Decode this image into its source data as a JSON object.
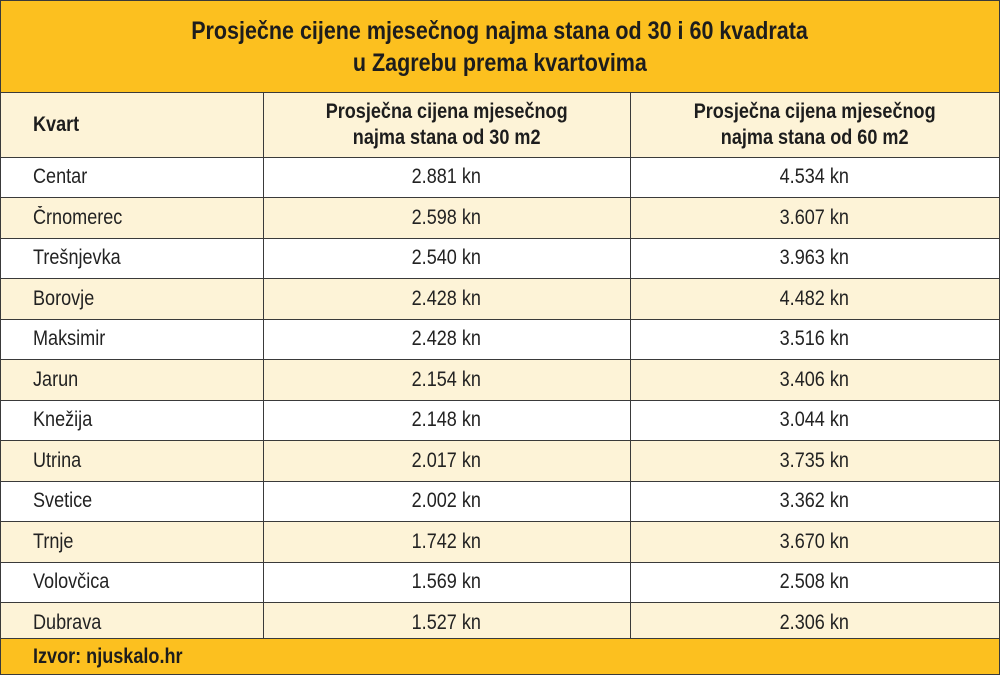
{
  "title": {
    "line1": "Prosječne cijene mjesečnog najma stana od 30 i 60 kvadrata",
    "line2": "u Zagrebu prema kvartovima"
  },
  "header": {
    "kvart": "Kvart",
    "col30_line1": "Prosječna cijena mjesečnog",
    "col30_line2": "najma stana od 30 m2",
    "col60_line1": "Prosječna cijena mjesečnog",
    "col60_line2": "najma stana od 60 m2"
  },
  "source": "Izvor: njuskalo.hr",
  "colors": {
    "accent": "#fcc01f",
    "row_alt": "#fdf3d7",
    "border": "#3a3a3a"
  },
  "chart_data": {
    "type": "table",
    "title": "Prosječne cijene mjesečnog najma stana od 30 i 60 kvadrata u Zagrebu prema kvartovima",
    "columns": [
      "Kvart",
      "Prosječna cijena mjesečnog najma stana od 30 m2",
      "Prosječna cijena mjesečnog najma stana od 60 m2"
    ],
    "rows": [
      [
        "Centar",
        "2.881 kn",
        "4.534 kn"
      ],
      [
        "Črnomerec",
        "2.598 kn",
        "3.607 kn"
      ],
      [
        "Trešnjevka",
        "2.540 kn",
        "3.963 kn"
      ],
      [
        "Borovje",
        "2.428 kn",
        "4.482 kn"
      ],
      [
        "Maksimir",
        "2.428 kn",
        "3.516 kn"
      ],
      [
        "Jarun",
        "2.154 kn",
        "3.406 kn"
      ],
      [
        "Knežija",
        "2.148 kn",
        "3.044 kn"
      ],
      [
        "Utrina",
        "2.017 kn",
        "3.735 kn"
      ],
      [
        "Svetice",
        "2.002 kn",
        "3.362 kn"
      ],
      [
        "Trnje",
        "1.742 kn",
        "3.670 kn"
      ],
      [
        "Volovčica",
        "1.569 kn",
        "2.508 kn"
      ],
      [
        "Dubrava",
        "1.527 kn",
        "2.306 kn"
      ]
    ]
  }
}
